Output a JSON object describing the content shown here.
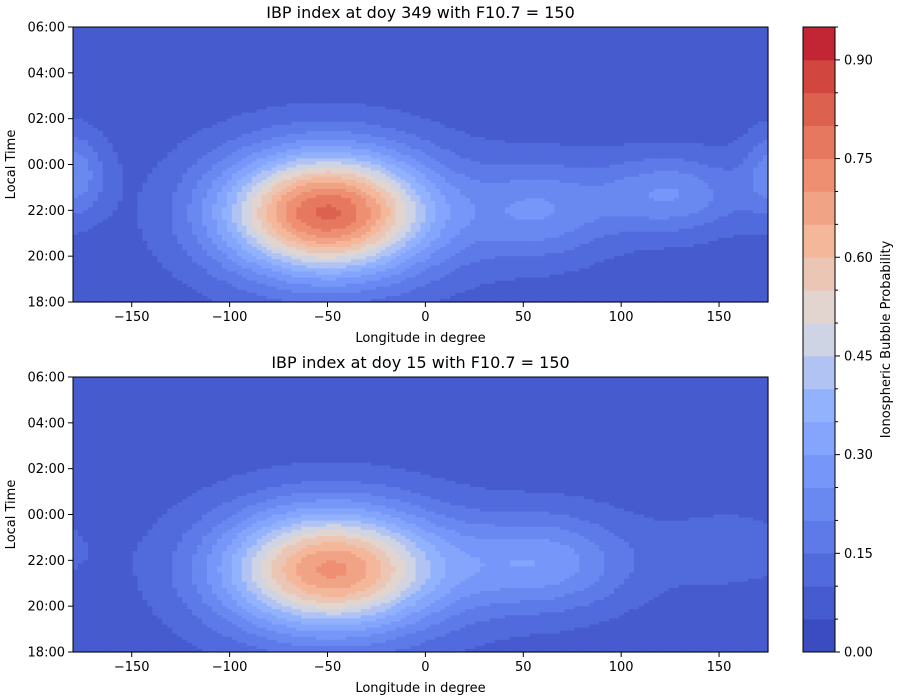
{
  "chart_data": [
    {
      "type": "heatmap",
      "subtype": "filled-contour",
      "title": "IBP index at doy 349 with F10.7 = 150",
      "xlabel": "Longitude in degree",
      "ylabel": "Local Time",
      "xlim": [
        -180,
        175
      ],
      "ylim": [
        -6,
        6
      ],
      "xticks": [
        -150,
        -100,
        -50,
        0,
        50,
        100,
        150
      ],
      "xtick_labels": [
        "−150",
        "−100",
        "−50",
        "0",
        "50",
        "100",
        "150"
      ],
      "yticks": [
        -6,
        -4,
        -2,
        0,
        2,
        4,
        6
      ],
      "ytick_labels": [
        "18:00",
        "20:00",
        "22:00",
        "00:00",
        "02:00",
        "04:00",
        "06:00"
      ],
      "components": [
        {
          "lon": -50,
          "lt": -2.1,
          "peak": 0.74,
          "sx": 38,
          "sy": 1.9
        },
        {
          "lon": 58,
          "lt": -2.0,
          "peak": 0.17,
          "sx": 26,
          "sy": 1.5
        },
        {
          "lon": 125,
          "lt": -1.3,
          "peak": 0.18,
          "sx": 26,
          "sy": 1.2
        },
        {
          "lon": -180,
          "lt": -0.4,
          "peak": 0.16,
          "sx": 12,
          "sy": 1.3
        }
      ],
      "background": 0.07,
      "peak_probability": 0.8,
      "peak_location": {
        "longitude": -50,
        "local_time": "21:55"
      }
    },
    {
      "type": "heatmap",
      "subtype": "filled-contour",
      "title": "IBP index at doy 15 with F10.7 = 150",
      "xlabel": "Longitude in degree",
      "ylabel": "Local Time",
      "xlim": [
        -180,
        175
      ],
      "ylim": [
        -6,
        6
      ],
      "xticks": [
        -150,
        -100,
        -50,
        0,
        50,
        100,
        150
      ],
      "xtick_labels": [
        "−150",
        "−100",
        "−50",
        "0",
        "50",
        "100",
        "150"
      ],
      "yticks": [
        -6,
        -4,
        -2,
        0,
        2,
        4,
        6
      ],
      "ytick_labels": [
        "18:00",
        "20:00",
        "22:00",
        "00:00",
        "02:00",
        "04:00",
        "06:00"
      ],
      "components": [
        {
          "lon": -48,
          "lt": -2.4,
          "peak": 0.64,
          "sx": 40,
          "sy": 1.9
        },
        {
          "lon": 60,
          "lt": -2.1,
          "peak": 0.21,
          "sx": 32,
          "sy": 1.5
        },
        {
          "lon": 155,
          "lt": -1.5,
          "peak": 0.06,
          "sx": 25,
          "sy": 1.2
        }
      ],
      "background": 0.07,
      "peak_probability": 0.7,
      "peak_location": {
        "longitude": -48,
        "local_time": "21:35"
      }
    }
  ],
  "colorbar": {
    "label": "Ionospheric Bubble Probability",
    "min": 0,
    "max": 0.95,
    "levels": [
      0,
      0.05,
      0.1,
      0.15,
      0.2,
      0.25,
      0.3,
      0.35,
      0.4,
      0.45,
      0.5,
      0.55,
      0.6,
      0.65,
      0.7,
      0.75,
      0.8,
      0.85,
      0.9,
      0.95
    ],
    "ticks": [
      0,
      0.15,
      0.3,
      0.45,
      0.6,
      0.75,
      0.9
    ],
    "tick_labels": [
      "0.00",
      "0.15",
      "0.30",
      "0.45",
      "0.60",
      "0.75",
      "0.90"
    ],
    "colormap": "coolwarm"
  }
}
